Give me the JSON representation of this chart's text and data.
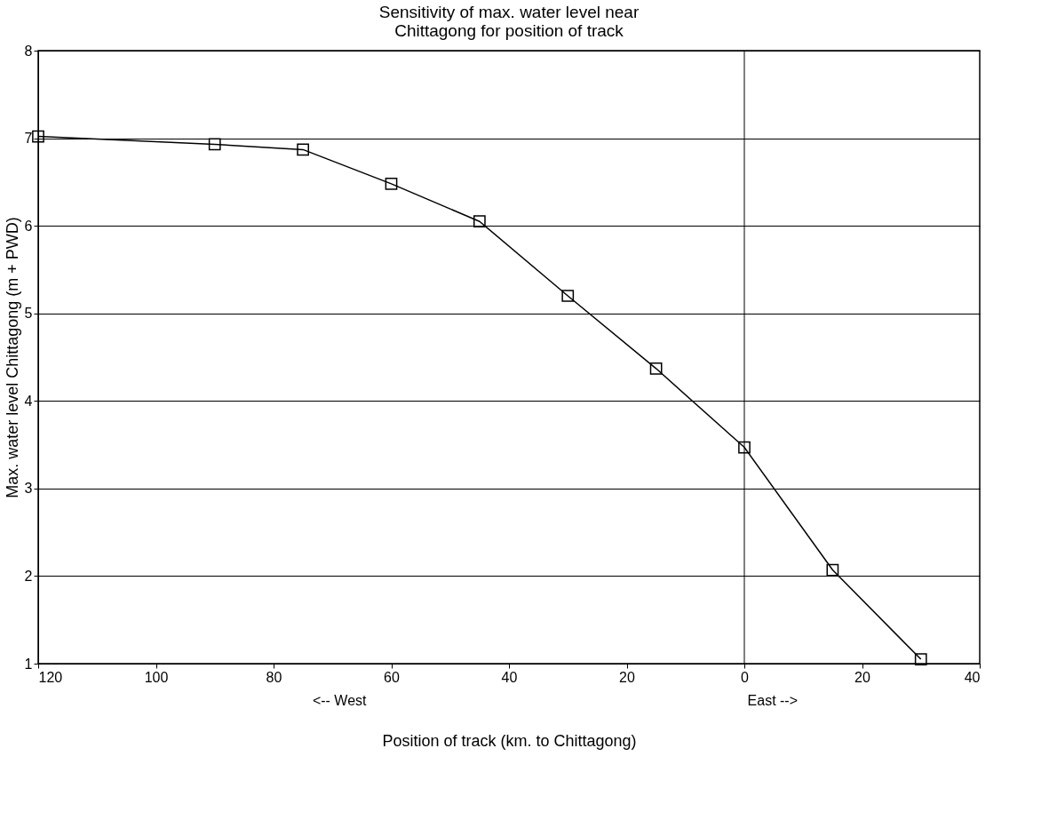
{
  "chart_data": {
    "type": "line",
    "title": [
      "Sensitivity of max. water level near",
      "Chittagong for position of track"
    ],
    "xlabel": "Position of track (km. to Chittagong)",
    "ylabel": "Max. water level Chittagong (m + PWD)",
    "x": [
      -120,
      -90,
      -75,
      -60,
      -45,
      -30,
      -15,
      0,
      15,
      30
    ],
    "series": [
      {
        "color": "#000000",
        "values": [
          7.02,
          6.93,
          6.87,
          6.48,
          6.05,
          5.2,
          4.37,
          3.47,
          2.07,
          1.05
        ]
      }
    ],
    "xlim": [
      -120,
      40
    ],
    "xticks": [
      {
        "value": -120,
        "label": "120"
      },
      {
        "value": -100,
        "label": "100"
      },
      {
        "value": -80,
        "label": "80"
      },
      {
        "value": -60,
        "label": "60"
      },
      {
        "value": -40,
        "label": "40"
      },
      {
        "value": -20,
        "label": "20"
      },
      0,
      20,
      40
    ],
    "ylim": [
      1,
      8
    ],
    "yticks": [
      1,
      2,
      3,
      4,
      5,
      6,
      7,
      8
    ],
    "ref_lines": [
      {
        "axis": "x",
        "value": 0,
        "color": "#000000"
      }
    ],
    "grid": "y",
    "marker": "square",
    "line_style": "solid",
    "annotations": [
      "<-- West",
      "East -->"
    ]
  }
}
